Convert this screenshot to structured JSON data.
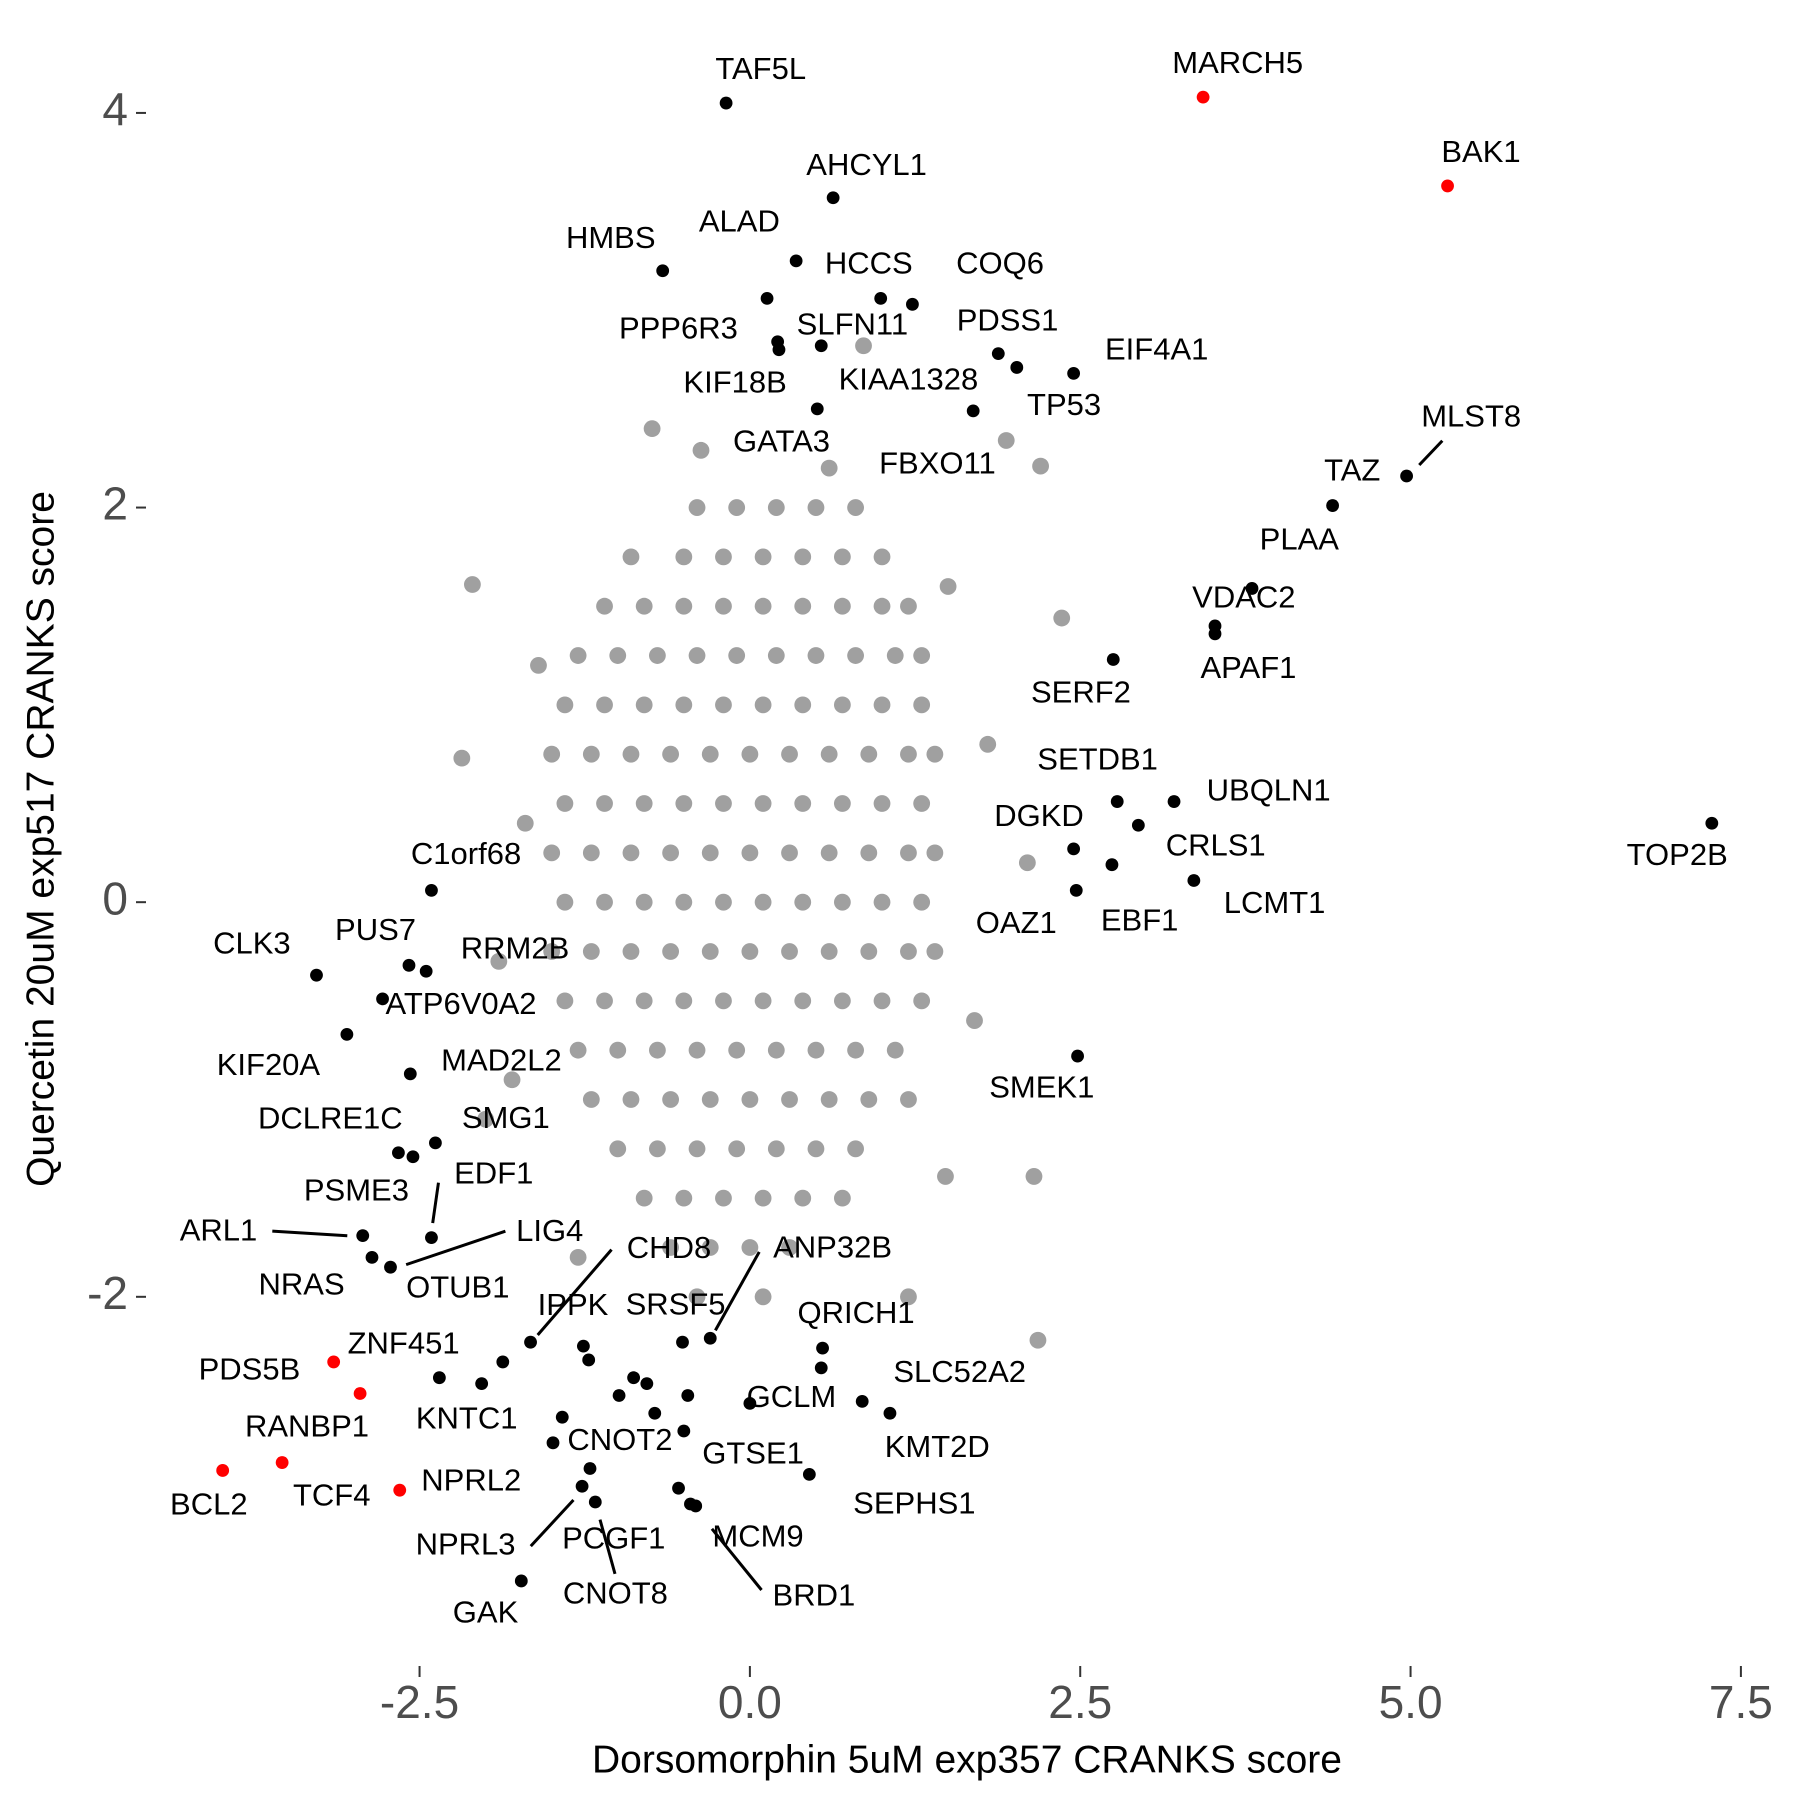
{
  "chart_data": {
    "type": "scatter",
    "x_label": "Dorsomorphin 5uM exp357 CRANKS score",
    "y_label": "Quercetin 20uM exp517 CRANKS score",
    "xlim": [
      -4.54,
      7.69
    ],
    "ylim": [
      -3.79,
      4.4
    ],
    "xticks": [
      -2.5,
      {
        "value": 0,
        "label": "0.0"
      },
      2.5,
      {
        "value": 5,
        "label": "5.0"
      },
      7.5
    ],
    "yticks": [
      -2,
      0,
      2,
      4
    ],
    "grid": false,
    "series": [
      {
        "color": "#a0a0a0",
        "x": [
          -0.4,
          -0.1,
          0.2,
          0.5,
          0.8,
          -0.9,
          -0.5,
          -0.2,
          0.1,
          0.4,
          0.7,
          1.0,
          -1.1,
          -0.8,
          -0.5,
          -0.2,
          0.1,
          0.4,
          0.7,
          1.0,
          1.2,
          -1.3,
          -1.0,
          -0.7,
          -0.4,
          -0.1,
          0.2,
          0.5,
          0.8,
          1.1,
          1.3,
          -1.4,
          -1.1,
          -0.8,
          -0.5,
          -0.2,
          0.1,
          0.4,
          0.7,
          1.0,
          1.3,
          -1.5,
          -1.2,
          -0.9,
          -0.6,
          -0.3,
          0,
          0.3,
          0.6,
          0.9,
          1.2,
          1.4,
          -1.4,
          -1.1,
          -0.8,
          -0.5,
          -0.2,
          0.1,
          0.4,
          0.7,
          1.0,
          1.3,
          -1.5,
          -1.2,
          -0.9,
          -0.6,
          -0.3,
          0,
          0.3,
          0.6,
          0.9,
          1.2,
          1.4,
          -1.4,
          -1.1,
          -0.8,
          -0.5,
          -0.2,
          0.1,
          0.4,
          0.7,
          1.0,
          1.3,
          -1.5,
          -1.2,
          -0.9,
          -0.6,
          -0.3,
          0,
          0.3,
          0.6,
          0.9,
          1.2,
          1.4,
          -1.4,
          -1.1,
          -0.8,
          -0.5,
          -0.2,
          0.1,
          0.4,
          0.7,
          1.0,
          1.3,
          -1.3,
          -1.0,
          -0.7,
          -0.4,
          -0.1,
          0.2,
          0.5,
          0.8,
          1.1,
          -1.2,
          -0.9,
          -0.6,
          -0.3,
          0,
          0.3,
          0.6,
          0.9,
          1.2,
          -1.0,
          -0.7,
          -0.4,
          -0.1,
          0.2,
          0.5,
          0.8,
          -0.8,
          -0.5,
          -0.2,
          0.1,
          0.4,
          0.7,
          -0.6,
          -0.3,
          0,
          0.3,
          -0.4,
          0.1,
          -2.18,
          -2.1,
          -0.74,
          -0.37,
          0.86,
          1.94,
          2.2,
          2.36,
          2.15,
          2.18,
          1.48,
          -1.8,
          -2.0,
          -1.7,
          1.7,
          1.8,
          2.1,
          -1.9,
          1.2,
          -1.3,
          0.6,
          -1.6,
          1.5
        ],
        "values": [
          2.0,
          2.0,
          2.0,
          2.0,
          2.0,
          1.75,
          1.75,
          1.75,
          1.75,
          1.75,
          1.75,
          1.75,
          1.5,
          1.5,
          1.5,
          1.5,
          1.5,
          1.5,
          1.5,
          1.5,
          1.5,
          1.25,
          1.25,
          1.25,
          1.25,
          1.25,
          1.25,
          1.25,
          1.25,
          1.25,
          1.25,
          1.0,
          1.0,
          1.0,
          1.0,
          1.0,
          1.0,
          1.0,
          1.0,
          1.0,
          1.0,
          0.75,
          0.75,
          0.75,
          0.75,
          0.75,
          0.75,
          0.75,
          0.75,
          0.75,
          0.75,
          0.75,
          0.5,
          0.5,
          0.5,
          0.5,
          0.5,
          0.5,
          0.5,
          0.5,
          0.5,
          0.5,
          0.25,
          0.25,
          0.25,
          0.25,
          0.25,
          0.25,
          0.25,
          0.25,
          0.25,
          0.25,
          0.25,
          0,
          0,
          0,
          0,
          0,
          0,
          0,
          0,
          0,
          0,
          -0.25,
          -0.25,
          -0.25,
          -0.25,
          -0.25,
          -0.25,
          -0.25,
          -0.25,
          -0.25,
          -0.25,
          -0.25,
          -0.5,
          -0.5,
          -0.5,
          -0.5,
          -0.5,
          -0.5,
          -0.5,
          -0.5,
          -0.5,
          -0.5,
          -0.75,
          -0.75,
          -0.75,
          -0.75,
          -0.75,
          -0.75,
          -0.75,
          -0.75,
          -0.75,
          -1.0,
          -1.0,
          -1.0,
          -1.0,
          -1.0,
          -1.0,
          -1.0,
          -1.0,
          -1.0,
          -1.25,
          -1.25,
          -1.25,
          -1.25,
          -1.25,
          -1.25,
          -1.25,
          -1.5,
          -1.5,
          -1.5,
          -1.5,
          -1.5,
          -1.5,
          -1.75,
          -1.75,
          -1.75,
          -1.75,
          -2.0,
          -2.0,
          0.73,
          1.61,
          2.4,
          2.29,
          2.82,
          2.34,
          2.21,
          1.44,
          -1.39,
          -2.22,
          -1.39,
          -0.9,
          -1.1,
          0.4,
          -0.6,
          0.8,
          0.2,
          -0.3,
          -2.0,
          -1.8,
          2.2,
          1.2,
          1.6
        ]
      },
      {
        "color": "#000000",
        "x": [
          -0.18,
          0.63,
          -0.66,
          0.35,
          0.13,
          0.99,
          1.23,
          0.21,
          0.22,
          0.54,
          1.88,
          2.02,
          2.45,
          0.51,
          1.69,
          4.97,
          4.41,
          3.8,
          3.52,
          3.52,
          2.75,
          2.78,
          3.21,
          2.94,
          2.45,
          2.74,
          3.36,
          2.47,
          7.28,
          2.48,
          -2.41,
          -3.28,
          -2.58,
          -2.45,
          -2.78,
          -3.05,
          -2.57,
          -2.38,
          -2.66,
          -2.55,
          -2.41,
          -2.93,
          -2.86,
          -1.87,
          -2.72,
          -1.66,
          -0.3,
          -1.26,
          -0.51,
          0.55,
          -2.35,
          -2.03,
          0.54,
          0.0,
          1.06,
          -1.49,
          -0.5,
          0.45,
          -1.27,
          -1.17,
          -1.21,
          -0.41,
          -0.45,
          -1.73,
          -1.22,
          -0.88,
          -0.78,
          -0.99,
          -0.72,
          -0.47,
          -1.42,
          -0.54,
          0.85
        ],
        "values": [
          4.05,
          3.57,
          3.2,
          3.25,
          3.06,
          3.06,
          3.03,
          2.84,
          2.8,
          2.82,
          2.78,
          2.71,
          2.68,
          2.5,
          2.49,
          2.16,
          2.01,
          1.59,
          1.4,
          1.36,
          1.23,
          0.51,
          0.51,
          0.39,
          0.27,
          0.19,
          0.11,
          0.06,
          0.4,
          -0.78,
          0.06,
          -0.37,
          -0.32,
          -0.35,
          -0.49,
          -0.67,
          -0.87,
          -1.22,
          -1.27,
          -1.29,
          -1.7,
          -1.69,
          -1.8,
          -2.33,
          -1.85,
          -2.23,
          -2.21,
          -2.25,
          -2.23,
          -2.26,
          -2.41,
          -2.44,
          -2.36,
          -2.54,
          -2.59,
          -2.74,
          -2.68,
          -2.9,
          -2.96,
          -3.04,
          -2.87,
          -3.06,
          -3.05,
          -3.44,
          -2.32,
          -2.41,
          -2.44,
          -2.5,
          -2.59,
          -2.5,
          -2.61,
          -2.97,
          -2.53
        ],
        "labels": [
          "TAF5L",
          "AHCYL1",
          "HMBS",
          "HCCS",
          "ALAD",
          "KIAA1328",
          "COQ6",
          "PPP6R3",
          "KIF18B",
          "SLFN11",
          "PDSS1",
          "TP53",
          "EIF4A1",
          "GATA3",
          "FBXO11",
          "MLST8",
          "TAZ",
          "PLAA",
          "VDAC2",
          "APAF1",
          "SERF2",
          "SETDB1",
          "UBQLN1",
          "CRLS1",
          "DGKD",
          "EBF1",
          "LCMT1",
          "OAZ1",
          "TOP2B",
          "SMEK1",
          "C1orf68",
          "CLK3",
          "PUS7",
          "RRM2B",
          "ATP6V0A2",
          "KIF20A",
          "MAD2L2",
          "SMG1",
          "DCLRE1C",
          "PSME3",
          "EDF1",
          "ARL1",
          "NRAS",
          "OTUB1",
          "LIG4",
          "CHD8",
          "ANP32B",
          "IPPK",
          "SRSF5",
          "QRICH1",
          "ZNF451",
          "KNTC1",
          "SLC52A2",
          "GCLM",
          "KMT2D",
          "CNOT2",
          "GTSE1",
          "SEPHS1",
          "NPRL3",
          "PCGF1",
          "CNOT8",
          "MCM9",
          "BRD1",
          "GAK",
          null,
          null,
          null,
          null,
          null,
          null,
          null,
          null,
          null
        ]
      },
      {
        "color": "#ff0000",
        "x": [
          3.43,
          5.28,
          -3.15,
          -2.95,
          -3.54,
          -3.99,
          -2.65
        ],
        "values": [
          4.08,
          3.63,
          -2.33,
          -2.49,
          -2.84,
          -2.88,
          -2.98
        ],
        "labels": [
          "MARCH5",
          "BAK1",
          "PDS5B",
          "RANBP1",
          "TCF4",
          "BCL2",
          "NPRL2"
        ]
      }
    ]
  }
}
